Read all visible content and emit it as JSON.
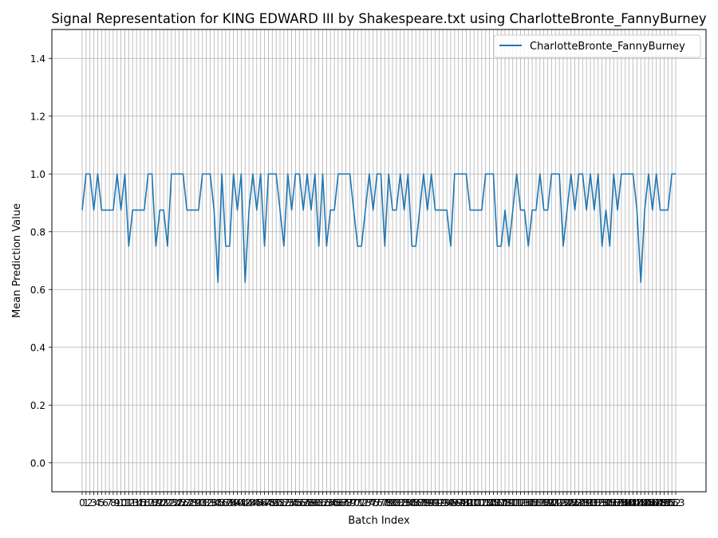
{
  "chart_data": {
    "type": "line",
    "title": "Signal Representation for KING EDWARD III by Shakespeare.txt using CharlotteBronte_FannyBurney",
    "xlabel": "Batch Index",
    "ylabel": "Mean Prediction Value",
    "ylim": [
      -0.1,
      1.5
    ],
    "yticks": [
      0.0,
      0.2,
      0.4,
      0.6,
      0.8,
      1.0,
      1.2,
      1.4
    ],
    "grid": true,
    "legend_position": "top-right",
    "colors": {
      "line": "#1f77b4",
      "grid": "#b0b0b0"
    },
    "series": [
      {
        "name": "CharlotteBronte_FannyBurney",
        "values": [
          0.875,
          1.0,
          1.0,
          0.875,
          1.0,
          0.875,
          0.875,
          0.875,
          0.875,
          1.0,
          0.875,
          1.0,
          0.75,
          0.875,
          0.875,
          0.875,
          0.875,
          1.0,
          1.0,
          0.75,
          0.875,
          0.875,
          0.75,
          1.0,
          1.0,
          1.0,
          1.0,
          0.875,
          0.875,
          0.875,
          0.875,
          1.0,
          1.0,
          1.0,
          0.875,
          0.625,
          1.0,
          0.75,
          0.75,
          1.0,
          0.875,
          1.0,
          0.625,
          0.875,
          1.0,
          0.875,
          1.0,
          0.75,
          1.0,
          1.0,
          1.0,
          0.875,
          0.75,
          1.0,
          0.875,
          1.0,
          1.0,
          0.875,
          1.0,
          0.875,
          1.0,
          0.75,
          1.0,
          0.75,
          0.875,
          0.875,
          1.0,
          1.0,
          1.0,
          1.0,
          0.875,
          0.75,
          0.75,
          0.875,
          1.0,
          0.875,
          1.0,
          1.0,
          0.75,
          1.0,
          0.875,
          0.875,
          1.0,
          0.875,
          1.0,
          0.75,
          0.75,
          0.875,
          1.0,
          0.875,
          1.0,
          0.875,
          0.875,
          0.875,
          0.875,
          0.75,
          1.0,
          1.0,
          1.0,
          1.0,
          0.875,
          0.875,
          0.875,
          0.875,
          1.0,
          1.0,
          1.0,
          0.75,
          0.75,
          0.875,
          0.75,
          0.875,
          1.0,
          0.875,
          0.875,
          0.75,
          0.875,
          0.875,
          1.0,
          0.875,
          0.875,
          1.0,
          1.0,
          1.0,
          0.75,
          0.875,
          1.0,
          0.875,
          1.0,
          1.0,
          0.875,
          1.0,
          0.875,
          1.0,
          0.75,
          0.875,
          0.75,
          1.0,
          0.875,
          1.0,
          1.0,
          1.0,
          1.0,
          0.875,
          0.625,
          0.875,
          1.0,
          0.875,
          1.0,
          0.875,
          0.875,
          0.875,
          1.0,
          1.0
        ]
      }
    ]
  }
}
